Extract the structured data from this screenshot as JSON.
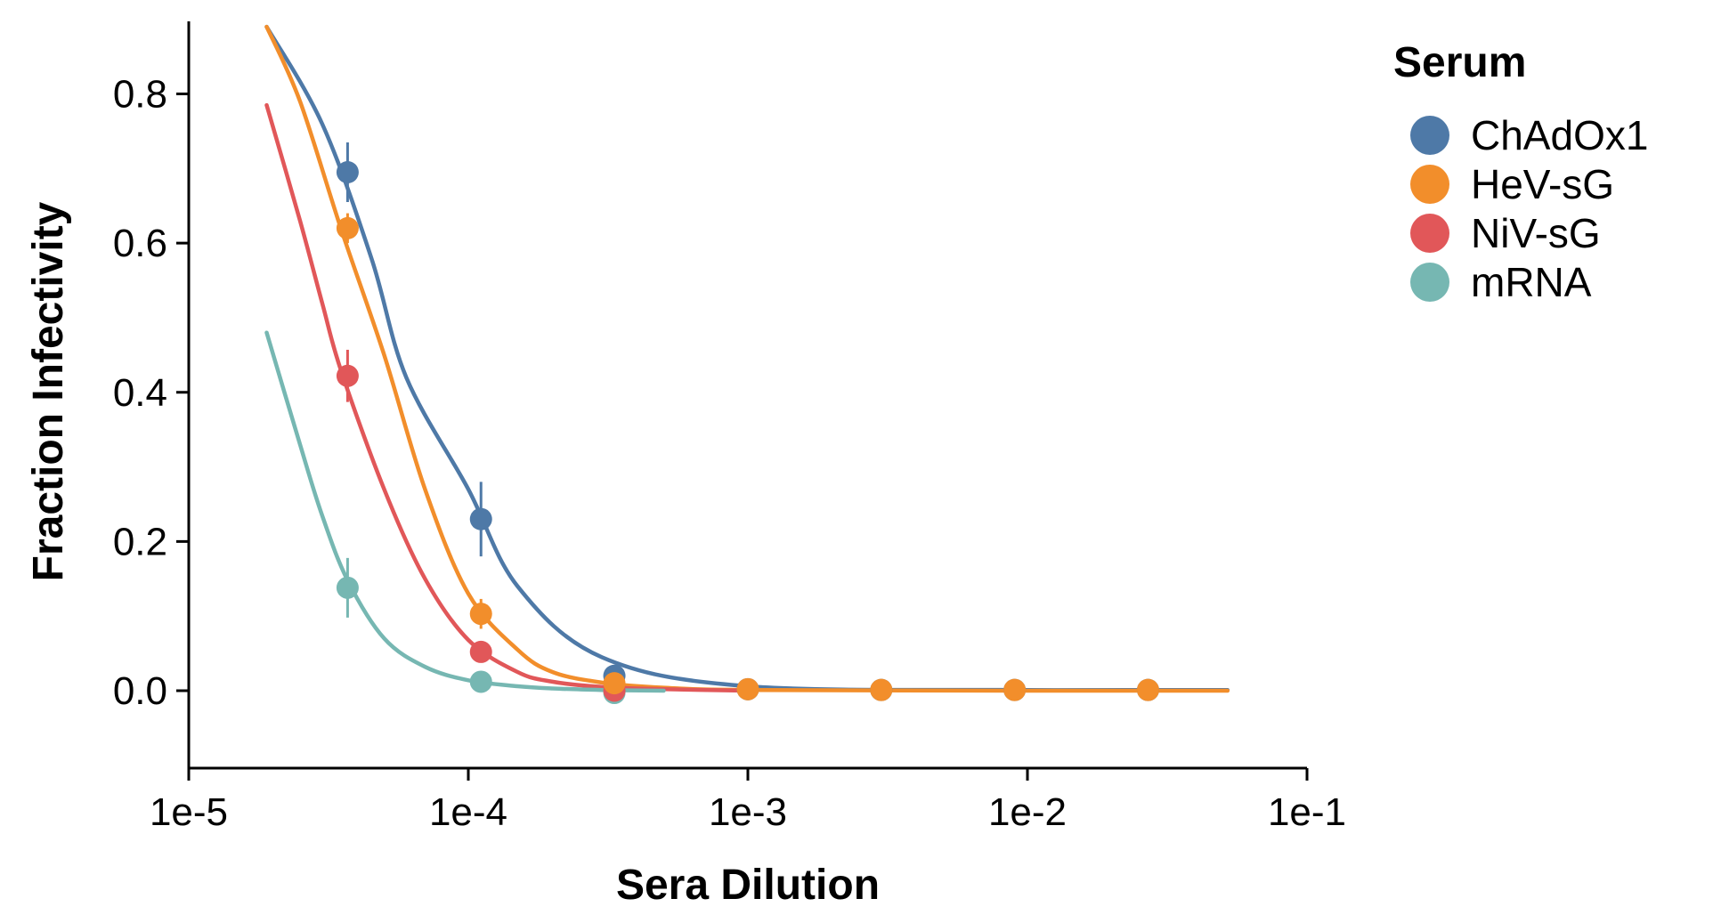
{
  "chart_data": {
    "type": "line",
    "title": "",
    "xlabel": "Sera Dilution",
    "ylabel": "Fraction Infectivity",
    "xscale": "log",
    "xlim": [
      1e-05,
      0.1
    ],
    "ylim": [
      -0.1,
      0.9
    ],
    "xticks": [
      1e-05,
      0.0001,
      0.001,
      0.01,
      0.1
    ],
    "xtick_labels": [
      "1e-5",
      "1e-4",
      "1e-3",
      "1e-2",
      "1e-1"
    ],
    "yticks": [
      0.0,
      0.2,
      0.4,
      0.6,
      0.8
    ],
    "ytick_labels": [
      "0.0",
      "0.2",
      "0.4",
      "0.6",
      "0.8"
    ],
    "grid": false,
    "legend": {
      "title": "Serum",
      "position": "top-right outside"
    },
    "series": [
      {
        "name": "ChAdOx1",
        "color": "#4e79a7",
        "points": {
          "x": [
            3.7e-05,
            0.000111,
            0.000333,
            0.001,
            0.003,
            0.009,
            0.027
          ],
          "y": [
            0.695,
            0.23,
            0.02,
            0.002,
            0.001,
            0.001,
            0.001
          ],
          "err": [
            0.04,
            0.05,
            0.012,
            0.004,
            0.002,
            0.002,
            0.002
          ]
        },
        "fit_curve": {
          "x": [
            1.9e-05,
            3e-05,
            4.5e-05,
            6e-05,
            0.0001,
            0.00015,
            0.0003,
            0.001,
            0.01,
            0.052
          ],
          "y": [
            0.89,
            0.76,
            0.58,
            0.42,
            0.27,
            0.14,
            0.045,
            0.006,
            0.001,
            0.001
          ]
        }
      },
      {
        "name": "HeV-sG",
        "color": "#f28e2b",
        "points": {
          "x": [
            3.7e-05,
            0.000111,
            0.000333,
            0.001,
            0.003,
            0.009,
            0.027
          ],
          "y": [
            0.62,
            0.103,
            0.01,
            0.002,
            0.001,
            0.001,
            0.001
          ],
          "err": [
            0.02,
            0.02,
            0.01,
            0.003,
            0.002,
            0.002,
            0.002
          ]
        },
        "fit_curve": {
          "x": [
            1.9e-05,
            2.5e-05,
            3.5e-05,
            5e-05,
            7e-05,
            0.0001,
            0.00015,
            0.0002,
            0.0003,
            0.0005,
            0.001,
            0.01,
            0.052
          ],
          "y": [
            0.89,
            0.79,
            0.62,
            0.45,
            0.27,
            0.13,
            0.055,
            0.025,
            0.011,
            0.004,
            0.001,
            0.0,
            0.0
          ]
        }
      },
      {
        "name": "NiV-sG",
        "color": "#e15759",
        "points": {
          "x": [
            3.7e-05,
            0.000111,
            0.000333
          ],
          "y": [
            0.422,
            0.052,
            0.0
          ],
          "err": [
            0.035,
            0.01,
            0.005
          ]
        },
        "fit_curve": {
          "x": [
            1.9e-05,
            2.5e-05,
            3e-05,
            3.5e-05,
            5e-05,
            7e-05,
            0.0001,
            0.00015,
            0.0002,
            0.0003,
            0.0005,
            0.001
          ],
          "y": [
            0.785,
            0.63,
            0.52,
            0.43,
            0.27,
            0.15,
            0.068,
            0.025,
            0.012,
            0.005,
            0.002,
            0.0
          ]
        }
      },
      {
        "name": "mRNA",
        "color": "#76b7b2",
        "points": {
          "x": [
            3.7e-05,
            0.000111,
            0.000333
          ],
          "y": [
            0.138,
            0.012,
            -0.003
          ],
          "err": [
            0.04,
            0.008,
            0.004
          ]
        },
        "fit_curve": {
          "x": [
            1.9e-05,
            2.5e-05,
            3e-05,
            3.7e-05,
            5e-05,
            7e-05,
            0.0001,
            0.00015,
            0.0002,
            0.0003,
            0.0005
          ],
          "y": [
            0.48,
            0.33,
            0.235,
            0.148,
            0.07,
            0.032,
            0.014,
            0.006,
            0.003,
            0.001,
            0.0
          ]
        }
      }
    ]
  }
}
